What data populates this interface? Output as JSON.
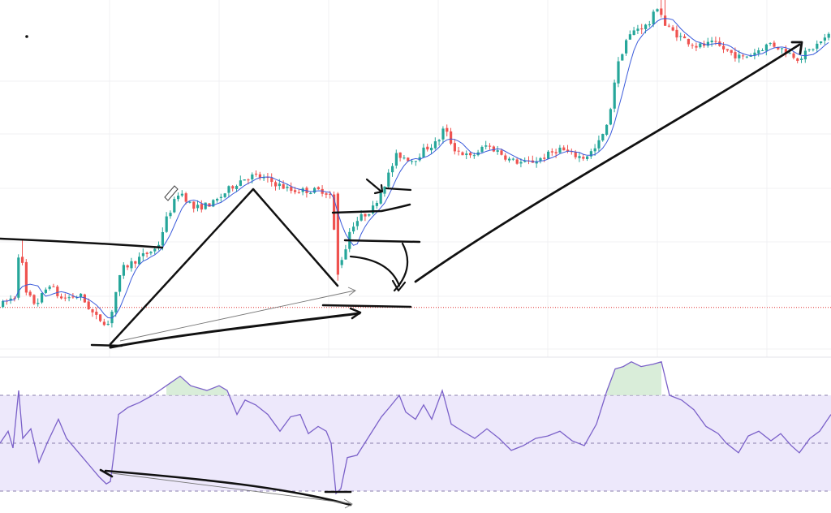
{
  "chart_data": [
    {
      "type": "candlestick",
      "title": "",
      "xlabel": "",
      "ylabel": "",
      "price_scale": "relative",
      "ylim": [
        0,
        100
      ],
      "grid": true,
      "moving_average": {
        "visible": true,
        "color": "#3b5bdb"
      },
      "support_line": {
        "value": 7.1,
        "color": "#e03131",
        "style": "dotted"
      },
      "colors": {
        "up": "#26a69a",
        "down": "#ef5350",
        "grid": "#f0f0f3",
        "ink": "#111111"
      },
      "anchors": [
        [
          0,
          7.5
        ],
        [
          20,
          11
        ],
        [
          25,
          30
        ],
        [
          32,
          12
        ],
        [
          45,
          8
        ],
        [
          62,
          15
        ],
        [
          75,
          10
        ],
        [
          100,
          11
        ],
        [
          118,
          4
        ],
        [
          135,
          1.5
        ],
        [
          145,
          14
        ],
        [
          152,
          20
        ],
        [
          175,
          24
        ],
        [
          195,
          27
        ],
        [
          205,
          36
        ],
        [
          222,
          46
        ],
        [
          240,
          40
        ],
        [
          265,
          42
        ],
        [
          285,
          47
        ],
        [
          300,
          50
        ],
        [
          315,
          51
        ],
        [
          335,
          49
        ],
        [
          360,
          46
        ],
        [
          380,
          46
        ],
        [
          400,
          46
        ],
        [
          410,
          44
        ],
        [
          415,
          20
        ],
        [
          425,
          25
        ],
        [
          433,
          34
        ],
        [
          445,
          37
        ],
        [
          460,
          40
        ],
        [
          476,
          49
        ],
        [
          490,
          58
        ],
        [
          510,
          56
        ],
        [
          525,
          60
        ],
        [
          540,
          62
        ],
        [
          548,
          67
        ],
        [
          560,
          60
        ],
        [
          580,
          57
        ],
        [
          600,
          61
        ],
        [
          615,
          59
        ],
        [
          630,
          56
        ],
        [
          650,
          55
        ],
        [
          670,
          57
        ],
        [
          690,
          60
        ],
        [
          705,
          58
        ],
        [
          720,
          57
        ],
        [
          735,
          60
        ],
        [
          750,
          68
        ],
        [
          760,
          86
        ],
        [
          772,
          96
        ],
        [
          785,
          100
        ],
        [
          800,
          101
        ],
        [
          812,
          108
        ],
        [
          820,
          101
        ],
        [
          840,
          97
        ],
        [
          860,
          94
        ],
        [
          880,
          95
        ],
        [
          900,
          92
        ],
        [
          915,
          90
        ],
        [
          930,
          92
        ],
        [
          950,
          95
        ],
        [
          965,
          93
        ],
        [
          985,
          90
        ],
        [
          1000,
          93
        ],
        [
          1024,
          98
        ]
      ]
    },
    {
      "type": "line",
      "indicator": "oscillator",
      "title": "",
      "ylim": [
        0,
        100
      ],
      "bands": {
        "upper": 70,
        "middle": 50,
        "lower": 30
      },
      "band_fill": "#ede8fb",
      "line_color": "#7b61c9",
      "grid": false,
      "points": [
        [
          0,
          50
        ],
        [
          10,
          55
        ],
        [
          16,
          48
        ],
        [
          23,
          72
        ],
        [
          28,
          52
        ],
        [
          38,
          56
        ],
        [
          48,
          42
        ],
        [
          58,
          50
        ],
        [
          72,
          60
        ],
        [
          82,
          52
        ],
        [
          92,
          48
        ],
        [
          102,
          44
        ],
        [
          112,
          40
        ],
        [
          122,
          36
        ],
        [
          131,
          33
        ],
        [
          136,
          34
        ],
        [
          141,
          47
        ],
        [
          146,
          62
        ],
        [
          158,
          65
        ],
        [
          172,
          67
        ],
        [
          188,
          70
        ],
        [
          205,
          74
        ],
        [
          222,
          78
        ],
        [
          235,
          74
        ],
        [
          255,
          72
        ],
        [
          270,
          74
        ],
        [
          280,
          72
        ],
        [
          292,
          62
        ],
        [
          302,
          68
        ],
        [
          315,
          66
        ],
        [
          330,
          62
        ],
        [
          345,
          55
        ],
        [
          358,
          61
        ],
        [
          370,
          62
        ],
        [
          380,
          54
        ],
        [
          392,
          57
        ],
        [
          402,
          55
        ],
        [
          408,
          50
        ],
        [
          414,
          29
        ],
        [
          420,
          31
        ],
        [
          428,
          44
        ],
        [
          440,
          45
        ],
        [
          455,
          53
        ],
        [
          470,
          61
        ],
        [
          480,
          65
        ],
        [
          492,
          70
        ],
        [
          500,
          63
        ],
        [
          512,
          60
        ],
        [
          522,
          66
        ],
        [
          532,
          60
        ],
        [
          545,
          72
        ],
        [
          556,
          58
        ],
        [
          570,
          55
        ],
        [
          585,
          52
        ],
        [
          600,
          56
        ],
        [
          615,
          52
        ],
        [
          630,
          47
        ],
        [
          645,
          49
        ],
        [
          660,
          52
        ],
        [
          675,
          53
        ],
        [
          690,
          55
        ],
        [
          705,
          51
        ],
        [
          720,
          49
        ],
        [
          735,
          58
        ],
        [
          748,
          72
        ],
        [
          758,
          81
        ],
        [
          768,
          82
        ],
        [
          778,
          84
        ],
        [
          790,
          82
        ],
        [
          805,
          83
        ],
        [
          815,
          84
        ],
        [
          825,
          70
        ],
        [
          840,
          68
        ],
        [
          855,
          64
        ],
        [
          870,
          57
        ],
        [
          885,
          54
        ],
        [
          895,
          50
        ],
        [
          910,
          46
        ],
        [
          922,
          53
        ],
        [
          935,
          55
        ],
        [
          950,
          51
        ],
        [
          962,
          54
        ],
        [
          975,
          49
        ],
        [
          985,
          46
        ],
        [
          998,
          52
        ],
        [
          1010,
          55
        ],
        [
          1024,
          62
        ]
      ]
    }
  ]
}
